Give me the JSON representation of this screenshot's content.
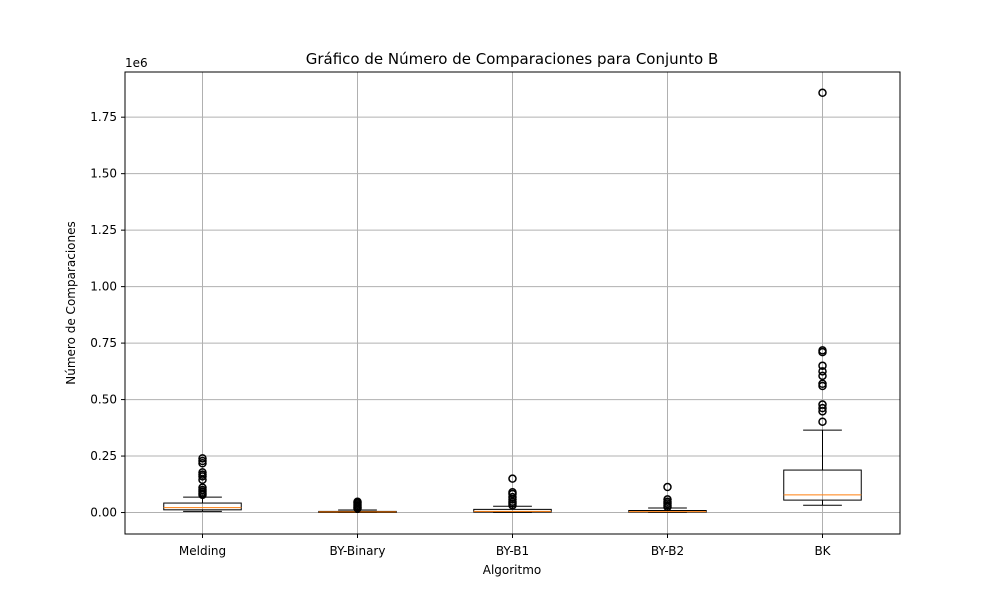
{
  "chart_data": {
    "type": "boxplot",
    "title": "Gráfico de Número de Comparaciones para Conjunto B",
    "xlabel": "Algoritmo",
    "ylabel": "Número de Comparaciones",
    "y_scale_label": "1e6",
    "ylim": [
      -95000,
      1950000
    ],
    "y_ticks": [
      0,
      250000,
      500000,
      750000,
      1000000,
      1250000,
      1500000,
      1750000
    ],
    "y_tick_labels": [
      "0.00",
      "0.25",
      "0.50",
      "0.75",
      "1.00",
      "1.25",
      "1.50",
      "1.75"
    ],
    "grid": true,
    "median_color": "#ff7f0e",
    "categories": [
      "Melding",
      "BY-Binary",
      "BY-B1",
      "BY-B2",
      "BK"
    ],
    "boxes": [
      {
        "label": "Melding",
        "whisker_low": 5000,
        "q1": 12000,
        "median": 22000,
        "q3": 42000,
        "whisker_high": 68000,
        "outliers": [
          78000,
          85000,
          92000,
          100000,
          110000,
          145000,
          160000,
          168000,
          178000,
          218000,
          228000,
          240000
        ]
      },
      {
        "label": "BY-Binary",
        "whisker_low": 0,
        "q1": 1000,
        "median": 3000,
        "q3": 5000,
        "whisker_high": 11000,
        "outliers": [
          18000,
          24000,
          30000,
          36000,
          42000,
          48000
        ]
      },
      {
        "label": "BY-B1",
        "whisker_low": 500,
        "q1": 2000,
        "median": 5000,
        "q3": 14000,
        "whisker_high": 28000,
        "outliers": [
          32000,
          40000,
          48000,
          58000,
          68000,
          82000,
          90000,
          150000
        ]
      },
      {
        "label": "BY-B2",
        "whisker_low": 500,
        "q1": 2000,
        "median": 4000,
        "q3": 9000,
        "whisker_high": 20000,
        "outliers": [
          25000,
          32000,
          40000,
          48000,
          58000,
          113000
        ]
      },
      {
        "label": "BK",
        "whisker_low": 32000,
        "q1": 55000,
        "median": 78000,
        "q3": 188000,
        "whisker_high": 365000,
        "outliers": [
          402000,
          448000,
          462000,
          478000,
          560000,
          570000,
          605000,
          625000,
          650000,
          710000,
          718000,
          1858000
        ]
      }
    ]
  }
}
